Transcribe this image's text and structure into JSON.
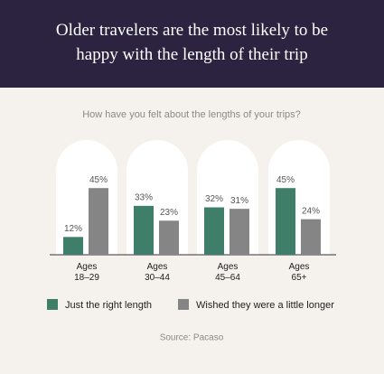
{
  "chart_data": {
    "type": "bar",
    "title": "Older travelers are the most likely to be happy with the length of their trip",
    "subtitle": "How have you felt about the lengths of your trips?",
    "categories": [
      "Ages 18–29",
      "Ages 30–44",
      "Ages 45–64",
      "Ages 65+"
    ],
    "series": [
      {
        "name": "Just the right length",
        "color": "#3f7f6a",
        "values": [
          12,
          33,
          32,
          45
        ],
        "value_labels": [
          "12%",
          "33%",
          "32%",
          "45%"
        ]
      },
      {
        "name": "Wished they were a little longer",
        "color": "#858585",
        "values": [
          45,
          23,
          31,
          24
        ],
        "value_labels": [
          "45%",
          "23%",
          "31%",
          "24%"
        ]
      }
    ],
    "source": "Source: Pacaso"
  }
}
